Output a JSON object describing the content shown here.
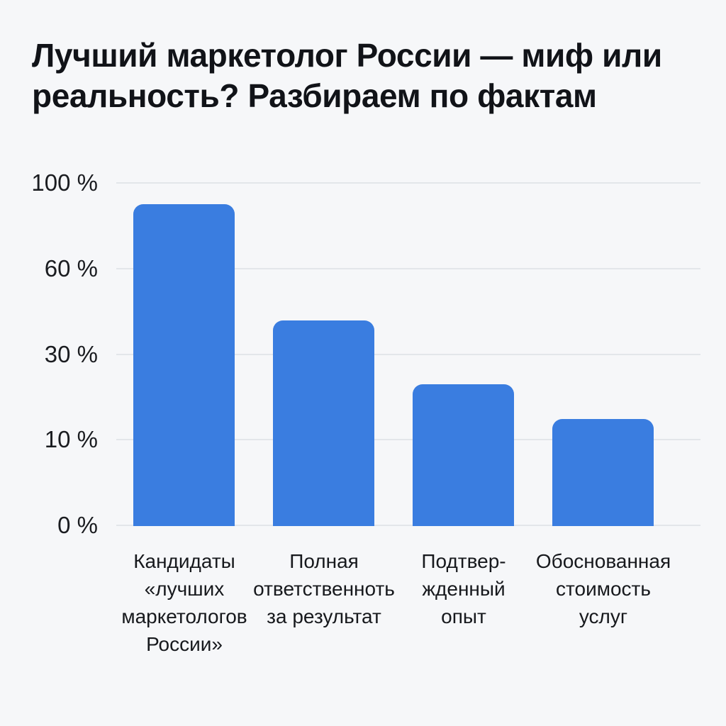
{
  "page": {
    "background_color": "#F6F7F9"
  },
  "header": {
    "title_lines": [
      "Лучший маркетолог России — миф или",
      "реальность? Разбираем по фактам"
    ]
  },
  "chart_data": {
    "type": "bar",
    "title": "Лучший маркетолог России — миф или реальность? Разбираем по фактам",
    "categories": [
      "Кандидаты «лучших маркетологов России»",
      "Полная ответственноть за результат",
      "Подтвер-жденный опыт",
      "Обоснованная стоимость услуг"
    ],
    "values": [
      90,
      42,
      23,
      15
    ],
    "unit": "%",
    "bar_color": "#3A7DE0",
    "y_tick_values": [
      100,
      60,
      30,
      10,
      0
    ],
    "y_tick_labels": [
      "100 %",
      "60 %",
      "30 %",
      "10 %",
      "0 %"
    ],
    "y_scale_note": "non-linear scale: ticks 100/60/30/10/0 evenly spaced",
    "grid": "horizontal gridlines at each tick, light gray",
    "legend": "none",
    "xlabel": "",
    "ylabel": ""
  },
  "yaxis": {
    "tick_labels": [
      "100 %",
      "60 %",
      "30 %",
      "10 %",
      "0 %"
    ]
  },
  "xaxis": {
    "labels": [
      "Кандидаты\n«лучших\nмаркетологов\nРоссии»",
      "Полная\nответственноть\nза результат",
      "Подтвер-\nжденный\nопыт",
      "Обоснованная\nстоимость\nуслуг"
    ]
  }
}
